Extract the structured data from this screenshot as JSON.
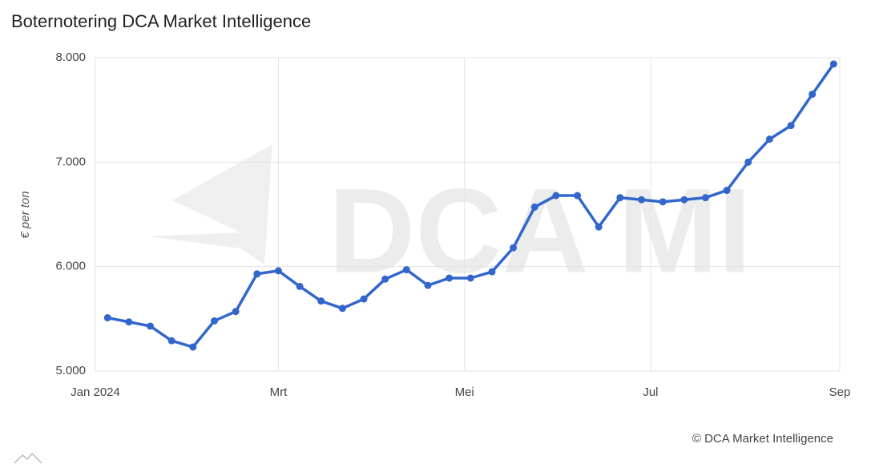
{
  "chart_data": {
    "type": "line",
    "title": "Boternotering DCA Market Intelligence",
    "y_label": "€ per ton",
    "watermark": "DCA MI",
    "credits": "© DCA Market Intelligence",
    "x": [
      4,
      11,
      18,
      25,
      32,
      39,
      46,
      53,
      60,
      67,
      74,
      81,
      88,
      95,
      102,
      109,
      116,
      123,
      130,
      137,
      144,
      151,
      158,
      165,
      172,
      179,
      186,
      193,
      200,
      207,
      214,
      221,
      228,
      235,
      242
    ],
    "series": [
      {
        "name": "Boternotering",
        "color": "#3366cc",
        "values": [
          5510,
          5470,
          5430,
          5290,
          5230,
          5480,
          5570,
          5930,
          5960,
          5810,
          5670,
          5600,
          5690,
          5880,
          5970,
          5820,
          5890,
          5890,
          5950,
          6180,
          6570,
          6680,
          6680,
          6380,
          6660,
          6640,
          6620,
          6640,
          6660,
          6730,
          7000,
          7220,
          7350,
          7650,
          7940
        ]
      }
    ],
    "xlim": [
      0,
      244
    ],
    "xticks": [
      {
        "value": 0,
        "label": "Jan 2024"
      },
      {
        "value": 60,
        "label": "Mrt"
      },
      {
        "value": 121,
        "label": "Mei"
      },
      {
        "value": 182,
        "label": "Jul"
      },
      {
        "value": 244,
        "label": "Sep"
      }
    ],
    "ylim": [
      5000,
      8000
    ],
    "yticks": [
      {
        "value": 5000,
        "label": "5.000"
      },
      {
        "value": 6000,
        "label": "6.000"
      },
      {
        "value": 7000,
        "label": "7.000"
      },
      {
        "value": 8000,
        "label": "8.000"
      }
    ],
    "grid": true
  }
}
